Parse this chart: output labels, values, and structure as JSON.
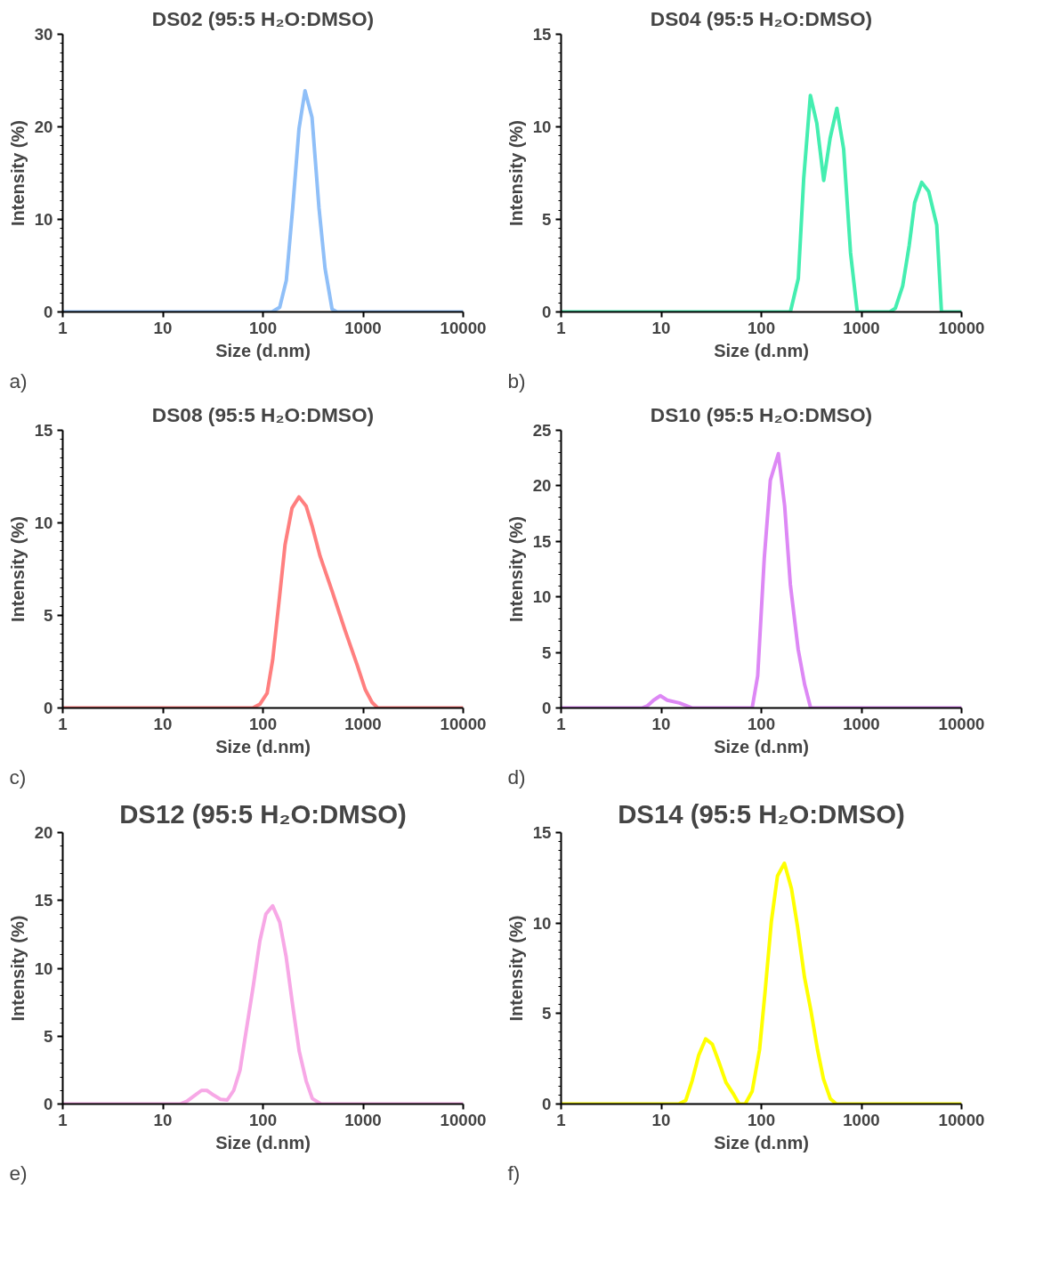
{
  "chart_data": [
    {
      "type": "line",
      "title": "DS02 (95:5 H₂O:DMSO)",
      "xlabel": "Size (d.nm)",
      "ylabel": "Intensity (%)",
      "log": "x",
      "grid": false,
      "annotations": [
        "a)"
      ],
      "xlim": [
        1,
        10000
      ],
      "xticks": [
        1,
        10,
        100,
        1000,
        10000
      ],
      "ylim": [
        0,
        30
      ],
      "yticks": [
        0,
        10,
        20,
        30
      ],
      "series": [
        {
          "color": "#8fbff8",
          "x": [
            1,
            123,
            147,
            171,
            198,
            229,
            263,
            309,
            363,
            417,
            490,
            550,
            10000
          ],
          "values": [
            0,
            0,
            0.5,
            3.4,
            11.2,
            19.8,
            23.9,
            21,
            11.2,
            4.7,
            0.3,
            0,
            0
          ]
        }
      ]
    },
    {
      "type": "line",
      "title": "DS04 (95:5 H₂O:DMSO)",
      "xlabel": "Size (d.nm)",
      "ylabel": "Intensity (%)",
      "log": "x",
      "grid": false,
      "annotations": [
        "b)"
      ],
      "xlim": [
        1,
        10000
      ],
      "xticks": [
        1,
        10,
        100,
        1000,
        10000
      ],
      "ylim": [
        0,
        15
      ],
      "yticks": [
        0,
        5,
        10,
        15
      ],
      "series": [
        {
          "color": "#44eeb0",
          "x": [
            1,
            195,
            234,
            265,
            309,
            358,
            420,
            487,
            568,
            664,
            778,
            909,
            1920,
            2180,
            2580,
            3000,
            3400,
            4000,
            4700,
            5650,
            6300,
            10000
          ],
          "values": [
            0,
            0,
            1.8,
            7.2,
            11.7,
            10.2,
            7.1,
            9.4,
            11,
            8.8,
            3.2,
            0,
            0,
            0.2,
            1.4,
            3.6,
            5.9,
            7,
            6.5,
            4.7,
            0,
            0
          ]
        }
      ]
    },
    {
      "type": "line",
      "title": "DS08 (95:5 H₂O:DMSO)",
      "xlabel": "Size (d.nm)",
      "ylabel": "Intensity (%)",
      "log": "x",
      "grid": false,
      "annotations": [
        "c)"
      ],
      "xlim": [
        1,
        10000
      ],
      "xticks": [
        1,
        10,
        100,
        1000,
        10000
      ],
      "ylim": [
        0,
        15
      ],
      "yticks": [
        0,
        5,
        10,
        15
      ],
      "series": [
        {
          "color": "#ff7f7f",
          "x": [
            1,
            79,
            93,
            110,
            125,
            145,
            166,
            195,
            229,
            270,
            311,
            372,
            491,
            660,
            875,
            1050,
            1230,
            1400,
            10000
          ],
          "values": [
            0,
            0,
            0.2,
            0.8,
            2.6,
            5.8,
            8.8,
            10.8,
            11.4,
            10.9,
            9.8,
            8.2,
            6.3,
            4.2,
            2.3,
            1,
            0.3,
            0,
            0
          ]
        }
      ]
    },
    {
      "type": "line",
      "title": "DS10 (95:5 H₂O:DMSO)",
      "xlabel": "Size (d.nm)",
      "ylabel": "Intensity (%)",
      "log": "x",
      "grid": false,
      "annotations": [
        "d)"
      ],
      "xlim": [
        1,
        10000
      ],
      "xticks": [
        1,
        10,
        100,
        1000,
        10000
      ],
      "ylim": [
        0,
        25
      ],
      "yticks": [
        0,
        5,
        10,
        15,
        20,
        25
      ],
      "series": [
        {
          "color": "#dd88f5",
          "x": [
            1,
            6.4,
            7.3,
            8.4,
            9.8,
            11.5,
            15.2,
            20.5,
            81,
            92,
            107,
            123,
            148,
            171,
            195,
            233,
            271,
            311,
            10000
          ],
          "values": [
            0,
            0,
            0.2,
            0.7,
            1.1,
            0.7,
            0.45,
            0,
            0,
            2.9,
            13.5,
            20.5,
            22.9,
            18.2,
            11.1,
            5.3,
            2.1,
            0,
            0
          ]
        }
      ]
    },
    {
      "type": "line",
      "title": "DS12 (95:5 H₂O:DMSO)",
      "xlabel": "Size (d.nm)",
      "ylabel": "Intensity (%)",
      "log": "x",
      "grid": false,
      "annotations": [
        "e)"
      ],
      "xlim": [
        1,
        10000
      ],
      "xticks": [
        1,
        10,
        100,
        1000,
        10000
      ],
      "ylim": [
        0,
        20
      ],
      "yticks": [
        0,
        5,
        10,
        15,
        20
      ],
      "series": [
        {
          "color": "#f7a8e6",
          "x": [
            1,
            14.8,
            17.4,
            20.5,
            24.3,
            27.5,
            32.2,
            37.7,
            44,
            51,
            59,
            68,
            80,
            93,
            107,
            125,
            147,
            170,
            196,
            230,
            270,
            311,
            380,
            10000
          ],
          "values": [
            0,
            0,
            0.2,
            0.6,
            1,
            1,
            0.65,
            0.35,
            0.3,
            1,
            2.5,
            5.4,
            8.7,
            12,
            14,
            14.6,
            13.4,
            10.9,
            7.5,
            3.9,
            1.7,
            0.4,
            0,
            0
          ]
        }
      ]
    },
    {
      "type": "line",
      "title": "DS14 (95:5 H₂O:DMSO)",
      "xlabel": "Size (d.nm)",
      "ylabel": "Intensity (%)",
      "log": "x",
      "grid": false,
      "annotations": [
        "f)"
      ],
      "xlim": [
        1,
        10000
      ],
      "xticks": [
        1,
        10,
        100,
        1000,
        10000
      ],
      "ylim": [
        0,
        15
      ],
      "yticks": [
        0,
        5,
        10,
        15
      ],
      "series": [
        {
          "color": "#ffff00",
          "x": [
            1,
            14.9,
            17.6,
            20.4,
            23.7,
            27.8,
            32.4,
            37.8,
            44.3,
            52,
            60,
            69,
            81,
            96,
            109,
            126,
            145,
            170,
            200,
            230,
            270,
            312,
            364,
            417,
            488,
            562,
            10000
          ],
          "values": [
            0,
            0,
            0.2,
            1.3,
            2.7,
            3.6,
            3.3,
            2.3,
            1.2,
            0.6,
            0,
            0,
            0.7,
            3,
            6.2,
            10.1,
            12.6,
            13.3,
            11.9,
            9.8,
            7,
            5.2,
            3,
            1.4,
            0.3,
            0,
            0
          ]
        }
      ]
    }
  ]
}
